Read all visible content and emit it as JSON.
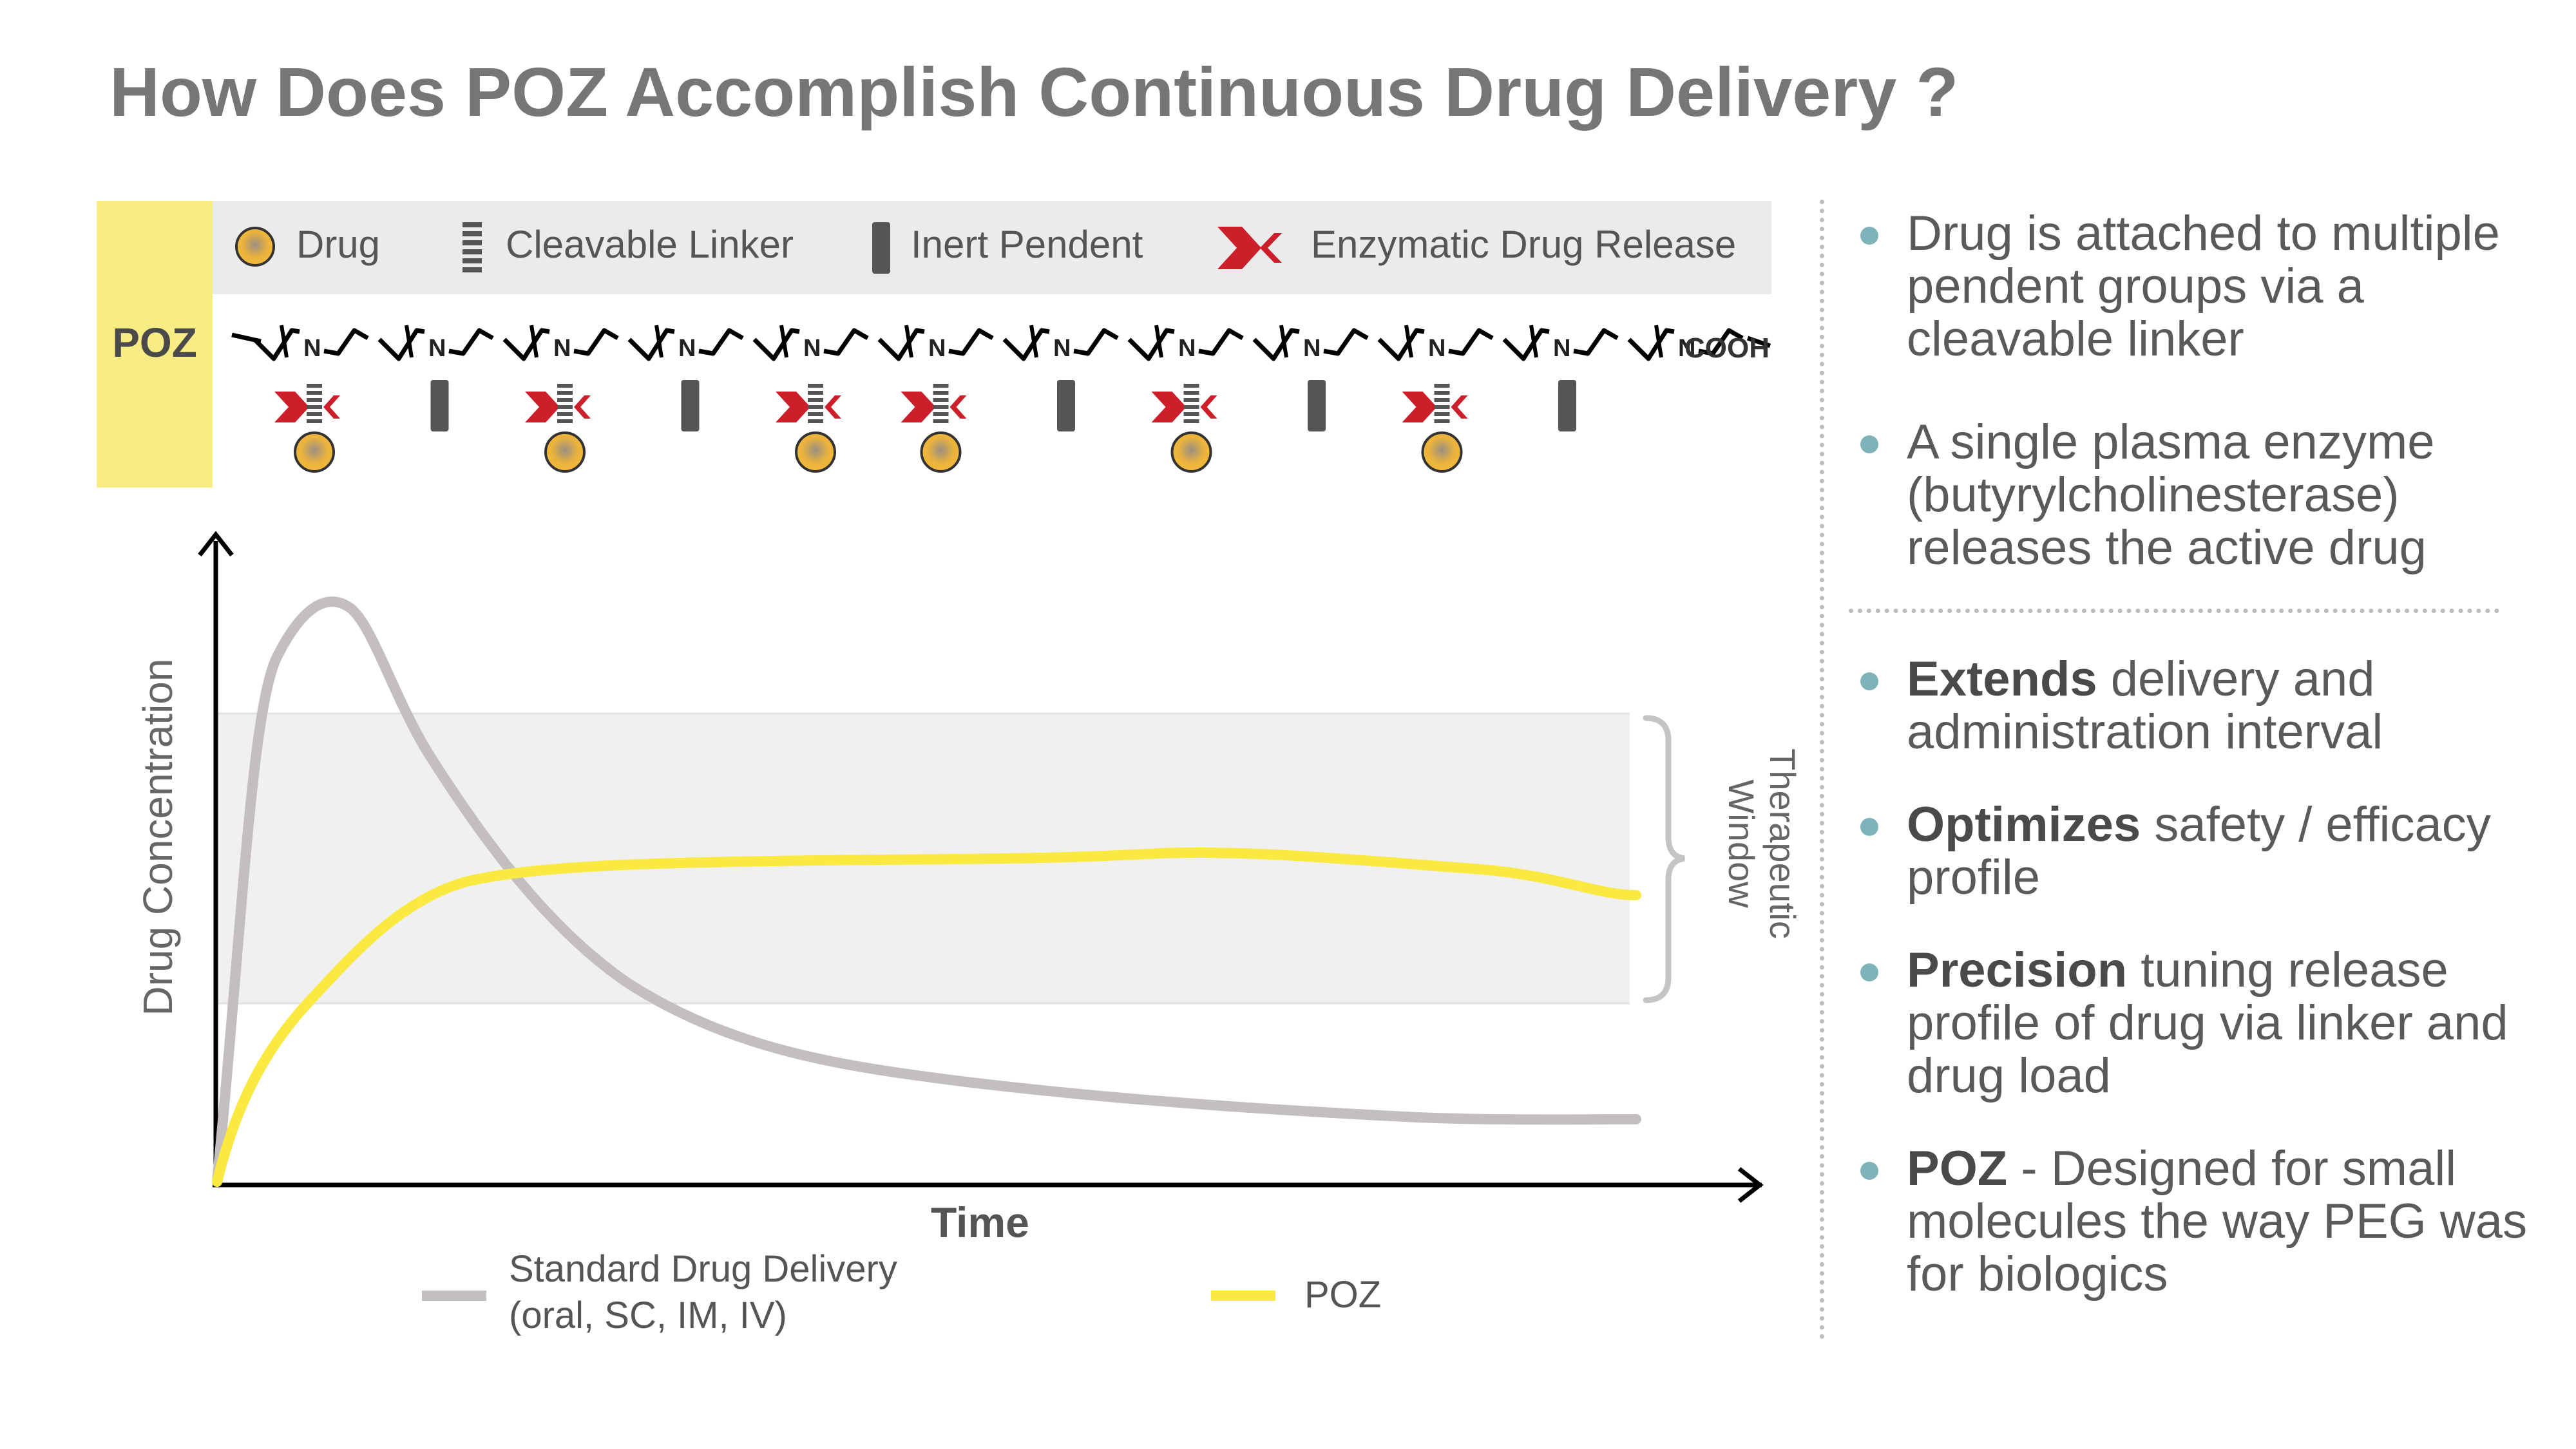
{
  "title": "How Does POZ Accomplish Continuous Drug Delivery ?",
  "polymer": {
    "tab_label": "POZ",
    "chain_end_label": "COOH",
    "nitrogen_label": "N"
  },
  "legend": {
    "items": [
      {
        "label": "Drug",
        "icon": "drug-sphere-icon"
      },
      {
        "label": "Cleavable Linker",
        "icon": "cleavable-linker-icon"
      },
      {
        "label": "Inert Pendent",
        "icon": "inert-pendent-icon"
      },
      {
        "label": "Enzymatic Drug Release",
        "icon": "enzyme-cleave-icon"
      }
    ]
  },
  "colors": {
    "yellow_tab": "#f8ec84",
    "legend_bg": "#ebebeb",
    "drug": "#f4b93a",
    "linker": "#555555",
    "release": "#cc1f2a",
    "standard_curve": "#c4bfbf",
    "poz_curve": "#f9e940",
    "bullet_dot": "#7fb3ba"
  },
  "chart": {
    "y_axis_label": "Drug Concentration",
    "x_axis_label": "Time",
    "therapeutic_window_label": [
      "Therapeutic",
      "Window"
    ],
    "legend": {
      "standard_line1": "Standard Drug Delivery",
      "standard_line2": "(oral, SC, IM, IV)",
      "poz": "POZ"
    }
  },
  "bullets_top": [
    {
      "text": "Drug is attached to multiple pendent groups via a cleavable linker"
    },
    {
      "text": "A single plasma enzyme (butyrylcholinesterase) releases the active drug"
    }
  ],
  "bullets_bottom": [
    {
      "bold": "Extends",
      "text": " delivery and administration interval"
    },
    {
      "bold": "Optimizes",
      "text": " safety / efficacy profile"
    },
    {
      "bold": "Precision",
      "text": " tuning release profile of drug via linker and drug load"
    },
    {
      "bold": "POZ",
      "text": " - Designed for small molecules the way PEG was for biologics"
    }
  ]
}
